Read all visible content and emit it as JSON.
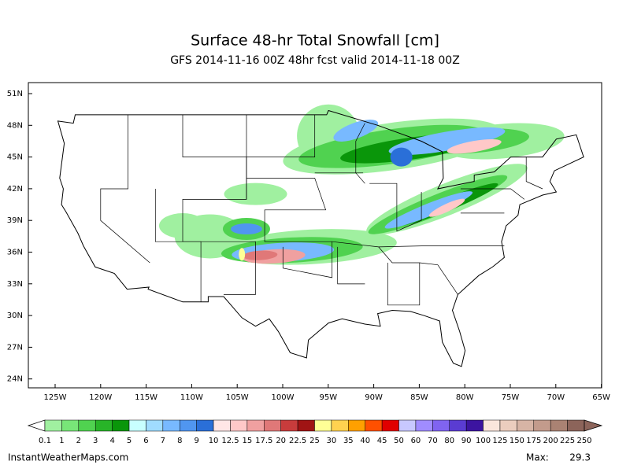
{
  "header": {
    "title": "Surface 48-hr Total Snowfall [cm]",
    "subtitle": "GFS 2014-11-16 00Z 48hr fcst valid 2014-11-18 00Z"
  },
  "map": {
    "lat_labels": [
      "51N",
      "48N",
      "45N",
      "42N",
      "39N",
      "36N",
      "33N",
      "30N",
      "27N",
      "24N"
    ],
    "lon_labels": [
      "125W",
      "120W",
      "115W",
      "110W",
      "105W",
      "100W",
      "95W",
      "90W",
      "85W",
      "80W",
      "75W",
      "70W",
      "65W"
    ]
  },
  "colorbar": {
    "labels": [
      0.1,
      1,
      2,
      3,
      4,
      5,
      6,
      7,
      8,
      9,
      10,
      12.5,
      15,
      17.5,
      20,
      22.5,
      25,
      30,
      35,
      40,
      45,
      50,
      60,
      70,
      80,
      90,
      100,
      125,
      150,
      175,
      200,
      225,
      250
    ],
    "colors": [
      "#a0f0a0",
      "#78e678",
      "#50d250",
      "#28b428",
      "#0a960a",
      "#c8ffff",
      "#a0dcff",
      "#78b9ff",
      "#5096f0",
      "#2a6fd8",
      "#ffe6e6",
      "#ffc8c8",
      "#f0a0a0",
      "#e07878",
      "#c83c3c",
      "#a01414",
      "#ffff96",
      "#ffd250",
      "#ffa000",
      "#ff5000",
      "#e00000",
      "#c8c8ff",
      "#a08cff",
      "#8064f0",
      "#5a3cd2",
      "#3c14a0",
      "#fae6dc",
      "#ebcdbe",
      "#d7b4a5",
      "#c39b8c",
      "#aa8273",
      "#8c645a"
    ]
  },
  "footer": {
    "site": "InstantWeatherMaps.com",
    "max_label": "Max:",
    "max_value": 29.3
  }
}
